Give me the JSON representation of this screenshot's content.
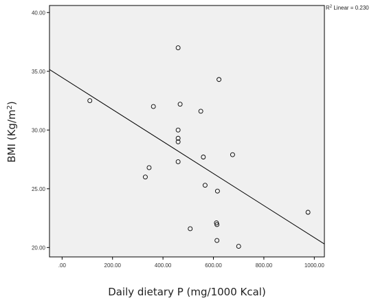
{
  "chart_data": {
    "type": "scatter",
    "xlabel": "Daily dietary P (mg/1000 Kcal)",
    "ylabel_main": "BMI (Kg/m",
    "ylabel_sup": "2",
    "ylabel_close": ")",
    "xlim": [
      -50,
      1040
    ],
    "ylim": [
      19.2,
      40.6
    ],
    "x_ticks": [
      0,
      200,
      400,
      600,
      800,
      1000
    ],
    "x_tick_labels": [
      ".00",
      "200.00",
      "400.00",
      "600.00",
      "800.00",
      "1000.00"
    ],
    "y_ticks": [
      20,
      25,
      30,
      35,
      40
    ],
    "y_tick_labels": [
      "20.00",
      "25.00",
      "30.00",
      "35.00",
      "40.00"
    ],
    "r2_label_prefix": "R",
    "r2_label_sup": "2",
    "r2_label_suffix": " Linear = 0.230",
    "grid": false,
    "points": [
      {
        "x": 110,
        "y": 32.5
      },
      {
        "x": 330,
        "y": 26.0
      },
      {
        "x": 345,
        "y": 26.8
      },
      {
        "x": 362,
        "y": 32.0
      },
      {
        "x": 460,
        "y": 37.0
      },
      {
        "x": 460,
        "y": 30.0
      },
      {
        "x": 460,
        "y": 29.3
      },
      {
        "x": 460,
        "y": 29.0
      },
      {
        "x": 460,
        "y": 27.3
      },
      {
        "x": 468,
        "y": 32.2
      },
      {
        "x": 508,
        "y": 21.6
      },
      {
        "x": 550,
        "y": 31.6
      },
      {
        "x": 560,
        "y": 27.7
      },
      {
        "x": 567,
        "y": 25.3
      },
      {
        "x": 612,
        "y": 22.1
      },
      {
        "x": 614,
        "y": 21.95
      },
      {
        "x": 614,
        "y": 20.6
      },
      {
        "x": 616,
        "y": 24.8
      },
      {
        "x": 622,
        "y": 34.3
      },
      {
        "x": 676,
        "y": 27.9
      },
      {
        "x": 700,
        "y": 20.1
      },
      {
        "x": 975,
        "y": 23.0
      }
    ],
    "fit_line": {
      "x": [
        -50,
        1040
      ],
      "y": [
        35.15,
        20.3
      ]
    }
  }
}
